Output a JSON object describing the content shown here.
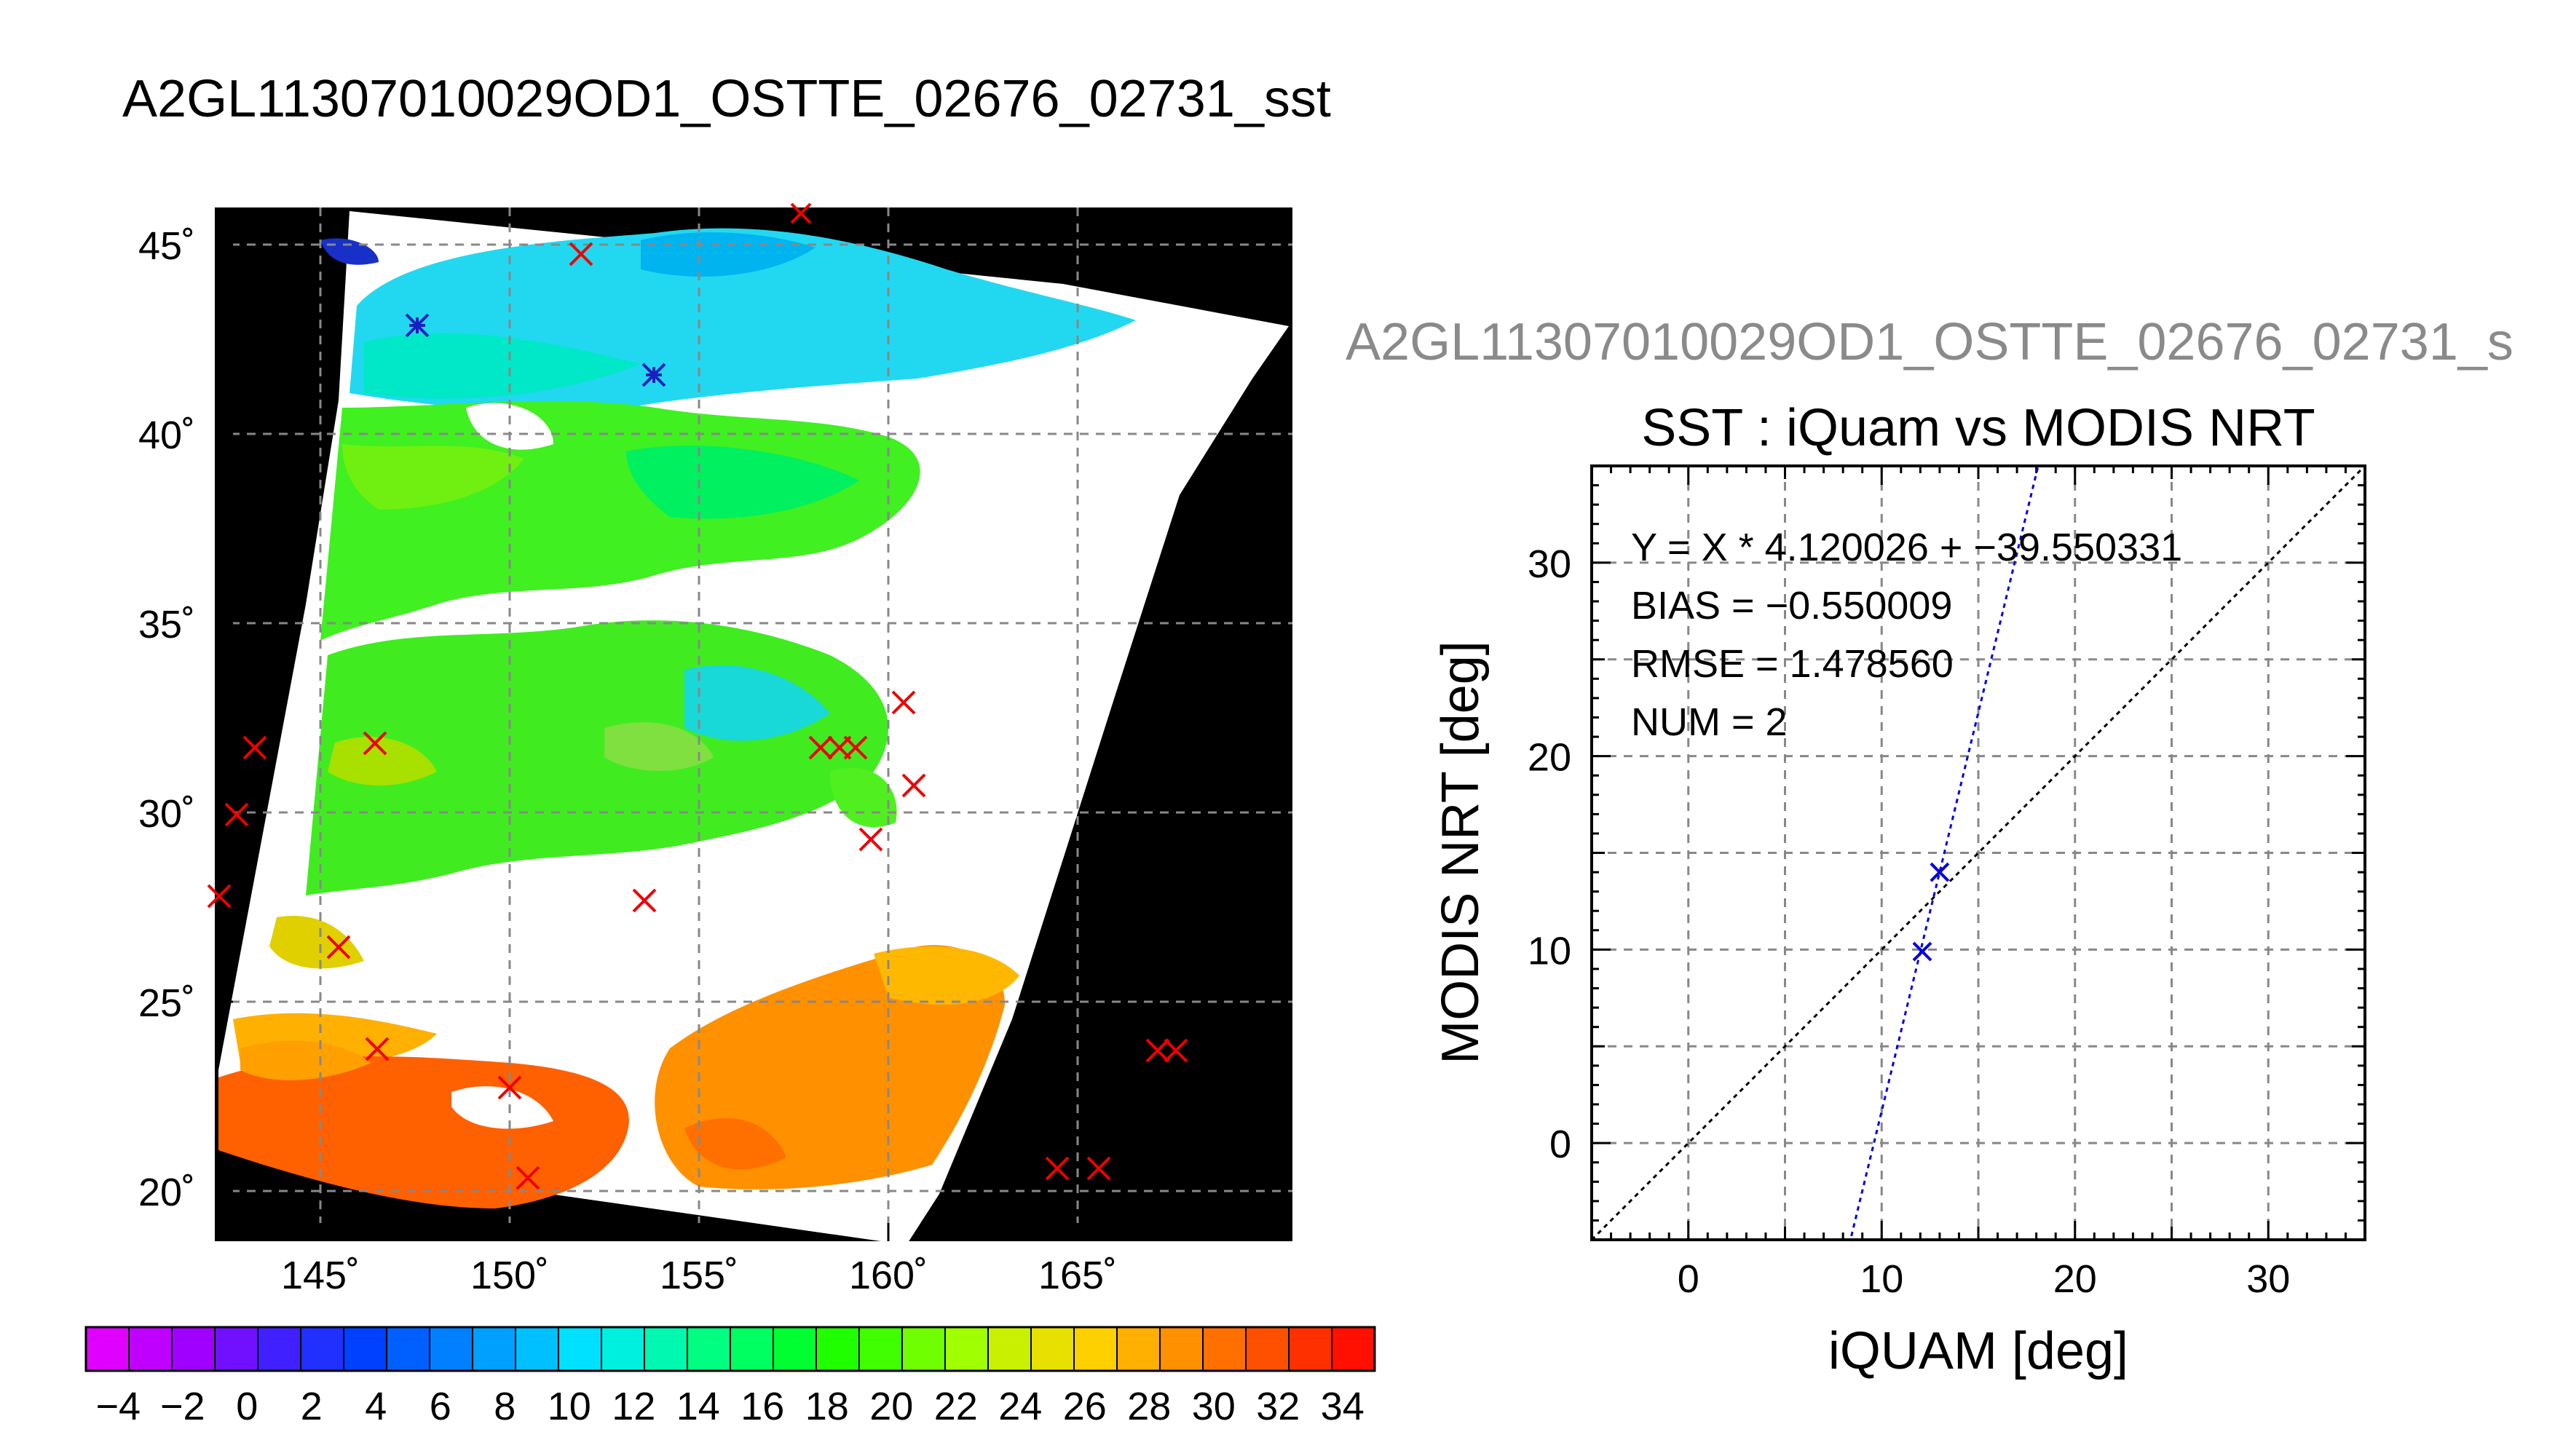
{
  "page_title": "A2GL11307010029OD1_OSTTE_02676_02731_sst",
  "map": {
    "lat_labels": [
      "45˚",
      "40˚",
      "35˚",
      "30˚",
      "25˚",
      "20˚"
    ],
    "lon_labels": [
      "145˚",
      "150˚",
      "155˚",
      "160˚",
      "165˚"
    ]
  },
  "colorbar": {
    "labels": [
      "−4",
      "−2",
      "0",
      "2",
      "4",
      "6",
      "8",
      "10",
      "12",
      "14",
      "16",
      "18",
      "20",
      "22",
      "24",
      "26",
      "28",
      "30",
      "32",
      "34"
    ],
    "range": [
      -5,
      35
    ],
    "colors": [
      "#e000ff",
      "#c000ff",
      "#a000ff",
      "#7010ff",
      "#4020ff",
      "#2030ff",
      "#0040ff",
      "#0060ff",
      "#0080ff",
      "#00a0ff",
      "#00c0ff",
      "#00e0ff",
      "#00f0e0",
      "#00f8b0",
      "#00ff80",
      "#00ff60",
      "#00ff30",
      "#20ff00",
      "#40ff00",
      "#70ff00",
      "#a0ff00",
      "#c8f000",
      "#e8e000",
      "#ffd000",
      "#ffb000",
      "#ff9000",
      "#ff7000",
      "#ff5000",
      "#ff3000",
      "#ff1000"
    ]
  },
  "chart_data": {
    "type": "scatter",
    "suptitle": "A2GL11307010029OD1_OSTTE_02676_02731_s",
    "title": "SST : iQuam vs MODIS NRT",
    "xlabel": "iQUAM [deg]",
    "ylabel": "MODIS NRT [deg]",
    "xlim": [
      -5,
      35
    ],
    "ylim": [
      -5,
      35
    ],
    "xticks": [
      0,
      10,
      20,
      30
    ],
    "yticks": [
      0,
      10,
      20,
      30
    ],
    "grid": true,
    "stats": [
      "Y = X * 4.120026 + −39.550331",
      "BIAS = −0.550009",
      "RMSE = 1.478560",
      "NUM = 2"
    ],
    "points": [
      {
        "x": 12.1,
        "y": 9.9
      },
      {
        "x": 13.0,
        "y": 14.0
      }
    ],
    "fit": {
      "slope": 4.120026,
      "intercept": -39.550331
    },
    "reference_line": "y = x"
  }
}
